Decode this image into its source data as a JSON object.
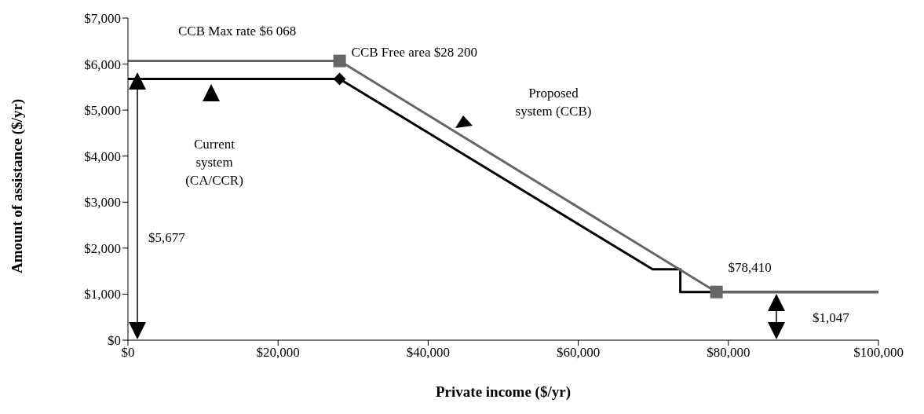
{
  "chart_data": {
    "type": "line",
    "xlabel": "Private income ($/yr)",
    "ylabel": "Amount of assistance ($/yr)",
    "xlim": [
      0,
      100000
    ],
    "xticks": [
      {
        "value": 0,
        "label": "$0"
      },
      {
        "value": 20000,
        "label": "$20,000"
      },
      {
        "value": 40000,
        "label": "$40,000"
      },
      {
        "value": 60000,
        "label": "$60,000"
      },
      {
        "value": 80000,
        "label": "$80,000"
      },
      {
        "value": 100000,
        "label": "$100,000"
      }
    ],
    "ylim": [
      0,
      7000
    ],
    "yticks": [
      {
        "value": 0,
        "label": "$0"
      },
      {
        "value": 1000,
        "label": "$1,000"
      },
      {
        "value": 2000,
        "label": "$2,000"
      },
      {
        "value": 3000,
        "label": "$3,000"
      },
      {
        "value": 4000,
        "label": "$4,000"
      },
      {
        "value": 5000,
        "label": "$5,000"
      },
      {
        "value": 6000,
        "label": "$6,000"
      },
      {
        "value": 7000,
        "label": "$7,000"
      }
    ],
    "grid": false,
    "annotations": [
      "CCB Max rate $6 068",
      {
        "text": "CCB Free area $28 200",
        "x": 28200,
        "y": 6068
      },
      "$5,677",
      {
        "text": "$78,410",
        "x": 78410,
        "y": 1047
      },
      "$1,047",
      "Current system (CA/CCR)",
      "Proposed system (CCB)"
    ],
    "series": [
      {
        "color": "#000000",
        "marker": "none",
        "x": [
          0,
          28200,
          69900,
          73600,
          73600,
          100000
        ],
        "values": [
          5677,
          5677,
          1540,
          1540,
          1047,
          1047
        ]
      },
      {
        "color": "#666666",
        "marker": "none",
        "x": [
          0,
          28200,
          78410,
          100000
        ],
        "values": [
          6068,
          6068,
          1047,
          1047
        ]
      },
      {
        "type": "scatter",
        "color": "#000000",
        "marker": "diamond",
        "x": [
          28200
        ],
        "values": [
          5677
        ]
      },
      {
        "type": "scatter",
        "color": "#666666",
        "marker": "square",
        "x": [
          28200,
          78410
        ],
        "values": [
          6068,
          1047
        ]
      }
    ]
  }
}
